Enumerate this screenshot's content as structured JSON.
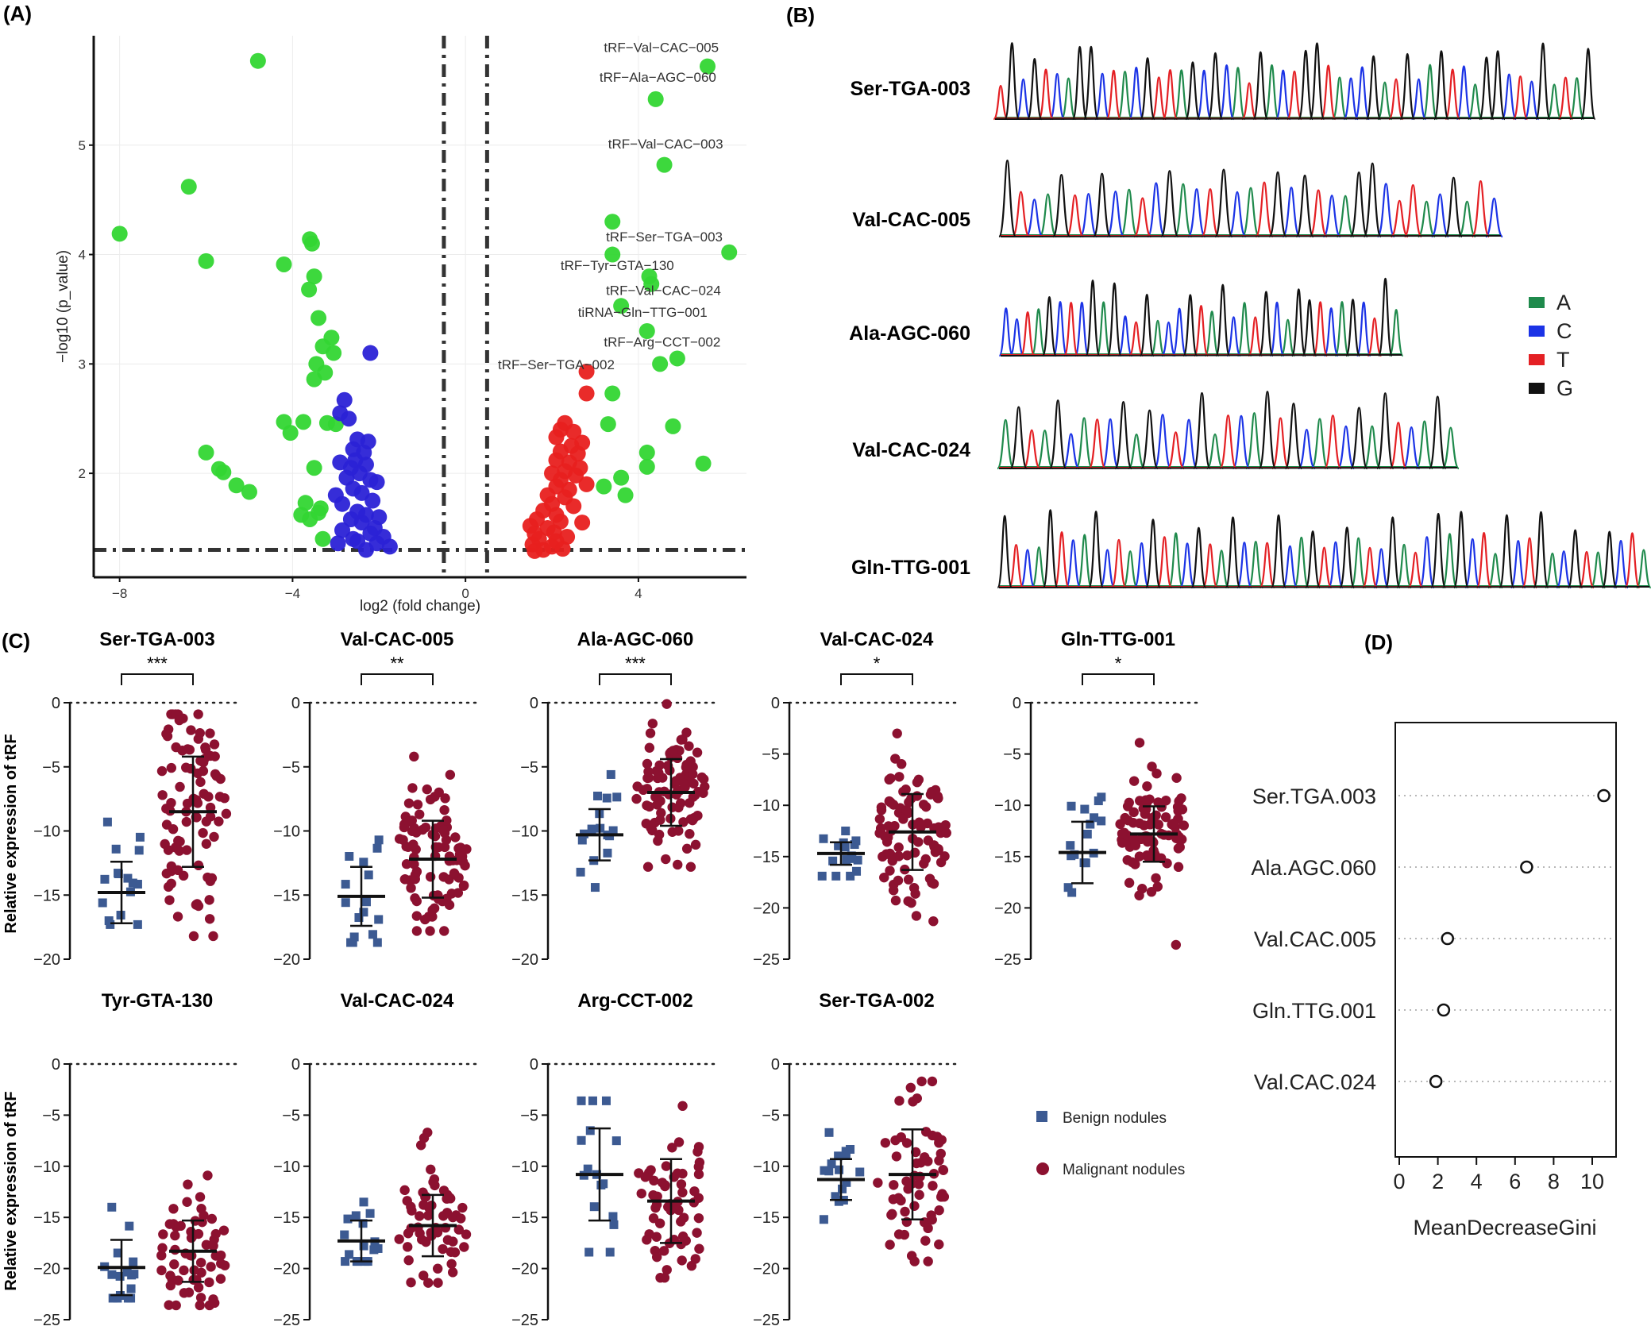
{
  "panel_labels": {
    "A": "(A)",
    "B": "(B)",
    "C": "(C)",
    "D": "(D)"
  },
  "colors": {
    "up": "#e8201f",
    "down": "#2b22d6",
    "sig": "#33d633",
    "A": "#1f8a4c",
    "C": "#1b33e6",
    "T": "#e42024",
    "G": "#111111",
    "benign": "#3c5a92",
    "malignant": "#8c1130"
  },
  "chart_data": [
    {
      "id": "volcano",
      "type": "scatter",
      "xlabel": "log2 (fold change)",
      "ylabel": "−log10 (p_value)",
      "xlim": [
        -8.6,
        6.5
      ],
      "ylim": [
        1.05,
        6.0
      ],
      "xticks": [
        -8,
        -4,
        0,
        4
      ],
      "yticks": [
        2,
        3,
        4,
        5
      ],
      "vlines": [
        -0.5,
        0.5
      ],
      "hline": 1.3,
      "series": [
        {
          "key": "sig",
          "points": [
            [
              -4.8,
              5.77
            ],
            [
              -6.4,
              4.62
            ],
            [
              -8.0,
              4.19
            ],
            [
              -6.0,
              3.94
            ],
            [
              -4.2,
              3.91
            ],
            [
              -3.6,
              4.14
            ],
            [
              -3.55,
              4.1
            ],
            [
              -3.5,
              3.8
            ],
            [
              -3.62,
              3.68
            ],
            [
              -3.4,
              3.42
            ],
            [
              -3.1,
              3.24
            ],
            [
              -3.3,
              3.16
            ],
            [
              -3.05,
              3.1
            ],
            [
              -3.45,
              3.0
            ],
            [
              -3.25,
              2.92
            ],
            [
              -3.5,
              2.86
            ],
            [
              -4.2,
              2.47
            ],
            [
              -3.75,
              2.47
            ],
            [
              -3.2,
              2.46
            ],
            [
              -3.0,
              2.45
            ],
            [
              -4.05,
              2.37
            ],
            [
              -3.5,
              2.05
            ],
            [
              -6.0,
              2.19
            ],
            [
              -5.7,
              2.04
            ],
            [
              -5.6,
              2.01
            ],
            [
              -5.3,
              1.89
            ],
            [
              -5.0,
              1.83
            ],
            [
              -3.7,
              1.73
            ],
            [
              -3.8,
              1.62
            ],
            [
              -3.35,
              1.68
            ],
            [
              -3.4,
              1.64
            ],
            [
              -3.3,
              1.4
            ],
            [
              -3.6,
              1.58
            ],
            [
              5.6,
              5.72
            ],
            [
              4.4,
              5.42
            ],
            [
              4.6,
              4.82
            ],
            [
              3.4,
              4.3
            ],
            [
              6.1,
              4.02
            ],
            [
              3.4,
              4.0
            ],
            [
              4.25,
              3.8
            ],
            [
              4.3,
              3.73
            ],
            [
              3.6,
              3.53
            ],
            [
              4.2,
              3.3
            ],
            [
              4.9,
              3.05
            ],
            [
              4.5,
              3.0
            ],
            [
              3.4,
              2.73
            ],
            [
              3.3,
              2.45
            ],
            [
              4.8,
              2.43
            ],
            [
              4.2,
              2.19
            ],
            [
              5.5,
              2.09
            ],
            [
              4.2,
              2.06
            ],
            [
              3.6,
              1.96
            ],
            [
              3.2,
              1.88
            ],
            [
              3.7,
              1.8
            ]
          ]
        },
        {
          "key": "down",
          "points": [
            [
              -2.2,
              3.1
            ],
            [
              -2.8,
              2.67
            ],
            [
              -2.9,
              2.55
            ],
            [
              -2.7,
              2.5
            ],
            [
              -2.5,
              2.31
            ],
            [
              -2.25,
              2.29
            ],
            [
              -2.6,
              2.22
            ],
            [
              -2.35,
              2.19
            ],
            [
              -2.55,
              2.12
            ],
            [
              -2.9,
              2.1
            ],
            [
              -2.3,
              2.08
            ],
            [
              -2.65,
              2.05
            ],
            [
              -2.45,
              2.0
            ],
            [
              -2.75,
              1.96
            ],
            [
              -2.2,
              1.94
            ],
            [
              -2.05,
              1.92
            ],
            [
              -2.6,
              1.86
            ],
            [
              -3.0,
              1.8
            ],
            [
              -2.4,
              1.82
            ],
            [
              -2.15,
              1.75
            ],
            [
              -2.85,
              1.72
            ],
            [
              -2.5,
              1.65
            ],
            [
              -2.3,
              1.62
            ],
            [
              -2.0,
              1.6
            ],
            [
              -2.65,
              1.58
            ],
            [
              -2.4,
              1.55
            ],
            [
              -2.1,
              1.5
            ],
            [
              -2.85,
              1.48
            ],
            [
              -2.2,
              1.45
            ],
            [
              -1.9,
              1.42
            ],
            [
              -2.6,
              1.4
            ],
            [
              -1.75,
              1.33
            ],
            [
              -2.3,
              1.3
            ],
            [
              -2.95,
              1.36
            ],
            [
              -2.5,
              1.38
            ],
            [
              -2.05,
              1.36
            ]
          ]
        },
        {
          "key": "up",
          "points": [
            [
              2.8,
              2.93
            ],
            [
              2.8,
              2.73
            ],
            [
              2.3,
              2.46
            ],
            [
              2.2,
              2.4
            ],
            [
              2.5,
              2.38
            ],
            [
              2.1,
              2.33
            ],
            [
              2.7,
              2.28
            ],
            [
              2.45,
              2.25
            ],
            [
              2.2,
              2.2
            ],
            [
              2.6,
              2.18
            ],
            [
              2.1,
              2.12
            ],
            [
              2.4,
              2.1
            ],
            [
              2.65,
              2.05
            ],
            [
              2.3,
              2.02
            ],
            [
              2.0,
              2.0
            ],
            [
              2.55,
              1.98
            ],
            [
              2.2,
              1.94
            ],
            [
              2.1,
              1.88
            ],
            [
              2.4,
              1.85
            ],
            [
              2.8,
              1.9
            ],
            [
              1.9,
              1.8
            ],
            [
              2.3,
              1.78
            ],
            [
              2.0,
              1.72
            ],
            [
              2.5,
              1.7
            ],
            [
              1.8,
              1.66
            ],
            [
              2.1,
              1.62
            ],
            [
              1.65,
              1.58
            ],
            [
              2.2,
              1.56
            ],
            [
              2.7,
              1.55
            ],
            [
              1.5,
              1.52
            ],
            [
              1.9,
              1.5
            ],
            [
              2.05,
              1.46
            ],
            [
              1.6,
              1.45
            ],
            [
              2.35,
              1.42
            ],
            [
              1.7,
              1.4
            ],
            [
              2.1,
              1.38
            ],
            [
              1.55,
              1.35
            ],
            [
              2.0,
              1.33
            ],
            [
              1.8,
              1.3
            ],
            [
              1.6,
              1.29
            ],
            [
              2.25,
              1.31
            ]
          ]
        }
      ],
      "annotations": [
        {
          "label": "tRF−Val−CAC−005",
          "x": 3.2,
          "y": 5.85
        },
        {
          "label": "tRF−Ala−AGC−060",
          "x": 3.1,
          "y": 5.58
        },
        {
          "label": "tRF−Val−CAC−003",
          "x": 3.3,
          "y": 4.97
        },
        {
          "label": "tRF−Ser−TGA−003",
          "x": 3.25,
          "y": 4.12
        },
        {
          "label": "tRF−Tyr−GTA−130",
          "x": 2.2,
          "y": 3.86
        },
        {
          "label": "tRF−Val−CAC−024",
          "x": 3.25,
          "y": 3.63
        },
        {
          "label": "tiRNA−Gln−TTG−001",
          "x": 2.6,
          "y": 3.43
        },
        {
          "label": "tRF−Arg−CCT−002",
          "x": 3.2,
          "y": 3.16
        },
        {
          "label": "tRF−Ser−TGA−002",
          "x": 0.75,
          "y": 2.95
        }
      ]
    },
    {
      "id": "chromatograms",
      "type": "line",
      "legend": [
        "A",
        "C",
        "T",
        "G"
      ],
      "traces": [
        {
          "name": "Ser-TGA-003",
          "seq": "TGCGTCAGGCTACGTTAGCGCATGACTGGTACCGATGCAGTCAGGCTCGATAG"
        },
        {
          "name": "Val-CAC-005",
          "seq": "GTCAGTCGCATCGACTGCATGCGTCAGGCTTACGATC"
        },
        {
          "name": "Ala-AGC-060",
          "seq": "CCTAGCTCGAGCTGACCGTAGCATGCAGGTCAGCTGA"
        },
        {
          "name": "Val-CAC-024",
          "seq": "AGTAGCATCGAGCTCGATCAGTGCATCGAGTCAGA"
        },
        {
          "name": "Gln-TTG-001",
          "seq": "GTCAGTCAGCTACGTACGTAGCATGCAGTCGATCGATCGAGCTAGCTGACGTAGCTA"
        }
      ]
    },
    {
      "id": "dotplots",
      "type": "scatter",
      "ylabel": "Relative expression of tRF",
      "legend": {
        "benign": "Benign nodules",
        "malignant": "Malignant nodules"
      },
      "plots": [
        {
          "title": "Ser-TGA-003",
          "ylim": [
            -20,
            0
          ],
          "yticks": [
            0,
            -5,
            -10,
            -15,
            -20
          ],
          "sig": "***",
          "benign": {
            "mean": -14.8,
            "sd": 2.4,
            "min": -17.3,
            "max": -9.3,
            "n": 16
          },
          "malignant": {
            "mean": -8.5,
            "sd": 4.3,
            "min": -18.2,
            "max": -0.9,
            "n": 90
          }
        },
        {
          "title": "Val-CAC-005",
          "ylim": [
            -20,
            0
          ],
          "yticks": [
            0,
            -5,
            -10,
            -15,
            -20
          ],
          "sig": "**",
          "benign": {
            "mean": -15.1,
            "sd": 2.3,
            "min": -18.7,
            "max": -10.7,
            "n": 16
          },
          "malignant": {
            "mean": -12.2,
            "sd": 3.0,
            "min": -17.8,
            "max": -4.2,
            "n": 90
          }
        },
        {
          "title": "Ala-AGC-060",
          "ylim": [
            -20,
            0
          ],
          "yticks": [
            0,
            -5,
            -10,
            -15,
            -20
          ],
          "sig": "***",
          "benign": {
            "mean": -10.3,
            "sd": 2.0,
            "min": -14.4,
            "max": -5.6,
            "n": 16
          },
          "malignant": {
            "mean": -7.0,
            "sd": 2.6,
            "min": -12.8,
            "max": -0.1,
            "n": 90
          }
        },
        {
          "title": "Val-CAC-024",
          "ylim": [
            -25,
            0
          ],
          "yticks": [
            0,
            -5,
            -10,
            -15,
            -20,
            -25
          ],
          "sig": "*",
          "benign": {
            "mean": -14.7,
            "sd": 1.1,
            "min": -16.9,
            "max": -12.5,
            "n": 16
          },
          "malignant": {
            "mean": -12.6,
            "sd": 3.7,
            "min": -21.3,
            "max": -3.0,
            "n": 90
          }
        },
        {
          "title": "Gln-TTG-001",
          "ylim": [
            -25,
            0
          ],
          "yticks": [
            0,
            -5,
            -10,
            -15,
            -20,
            -25
          ],
          "sig": "*",
          "benign": {
            "mean": -14.6,
            "sd": 3.0,
            "min": -18.5,
            "max": -9.2,
            "n": 16
          },
          "malignant": {
            "mean": -12.8,
            "sd": 2.7,
            "min": -23.6,
            "max": -3.9,
            "n": 90
          }
        },
        {
          "title": "Tyr-GTA-130",
          "ylim": [
            -25,
            0
          ],
          "yticks": [
            0,
            -5,
            -10,
            -15,
            -20,
            -25
          ],
          "sig": "",
          "benign": {
            "mean": -19.9,
            "sd": 2.7,
            "min": -22.9,
            "max": -14.0,
            "n": 16
          },
          "malignant": {
            "mean": -18.3,
            "sd": 3.0,
            "min": -23.6,
            "max": -10.9,
            "n": 60
          }
        },
        {
          "title": "Val-CAC-024",
          "ylim": [
            -25,
            0
          ],
          "yticks": [
            0,
            -5,
            -10,
            -15,
            -20,
            -25
          ],
          "sig": "",
          "benign": {
            "mean": -17.3,
            "sd": 2.0,
            "min": -19.3,
            "max": -13.5,
            "n": 16
          },
          "malignant": {
            "mean": -15.8,
            "sd": 3.0,
            "min": -21.4,
            "max": -6.7,
            "n": 60
          }
        },
        {
          "title": "Arg-CCT-002",
          "ylim": [
            -25,
            0
          ],
          "yticks": [
            0,
            -5,
            -10,
            -15,
            -20,
            -25
          ],
          "sig": "",
          "benign": {
            "mean": -10.8,
            "sd": 4.5,
            "min": -18.4,
            "max": -3.6,
            "n": 16
          },
          "malignant": {
            "mean": -13.4,
            "sd": 4.1,
            "min": -20.9,
            "max": -4.1,
            "n": 60
          }
        },
        {
          "title": "Ser-TGA-002",
          "ylim": [
            -25,
            0
          ],
          "yticks": [
            0,
            -5,
            -10,
            -15,
            -20,
            -25
          ],
          "sig": "",
          "benign": {
            "mean": -11.3,
            "sd": 2.0,
            "min": -15.2,
            "max": -6.7,
            "n": 16
          },
          "malignant": {
            "mean": -10.8,
            "sd": 4.4,
            "min": -19.3,
            "max": -1.7,
            "n": 60
          }
        }
      ]
    },
    {
      "id": "gini",
      "type": "scatter",
      "xlabel": "MeanDecreaseGini",
      "xlim": [
        0,
        11
      ],
      "xticks": [
        0,
        2,
        4,
        6,
        8,
        10
      ],
      "categories": [
        "Ser.TGA.003",
        "Ala.AGC.060",
        "Val.CAC.005",
        "Gln.TTG.001",
        "Val.CAC.024"
      ],
      "values": [
        10.6,
        6.6,
        2.5,
        2.3,
        1.9
      ]
    }
  ]
}
